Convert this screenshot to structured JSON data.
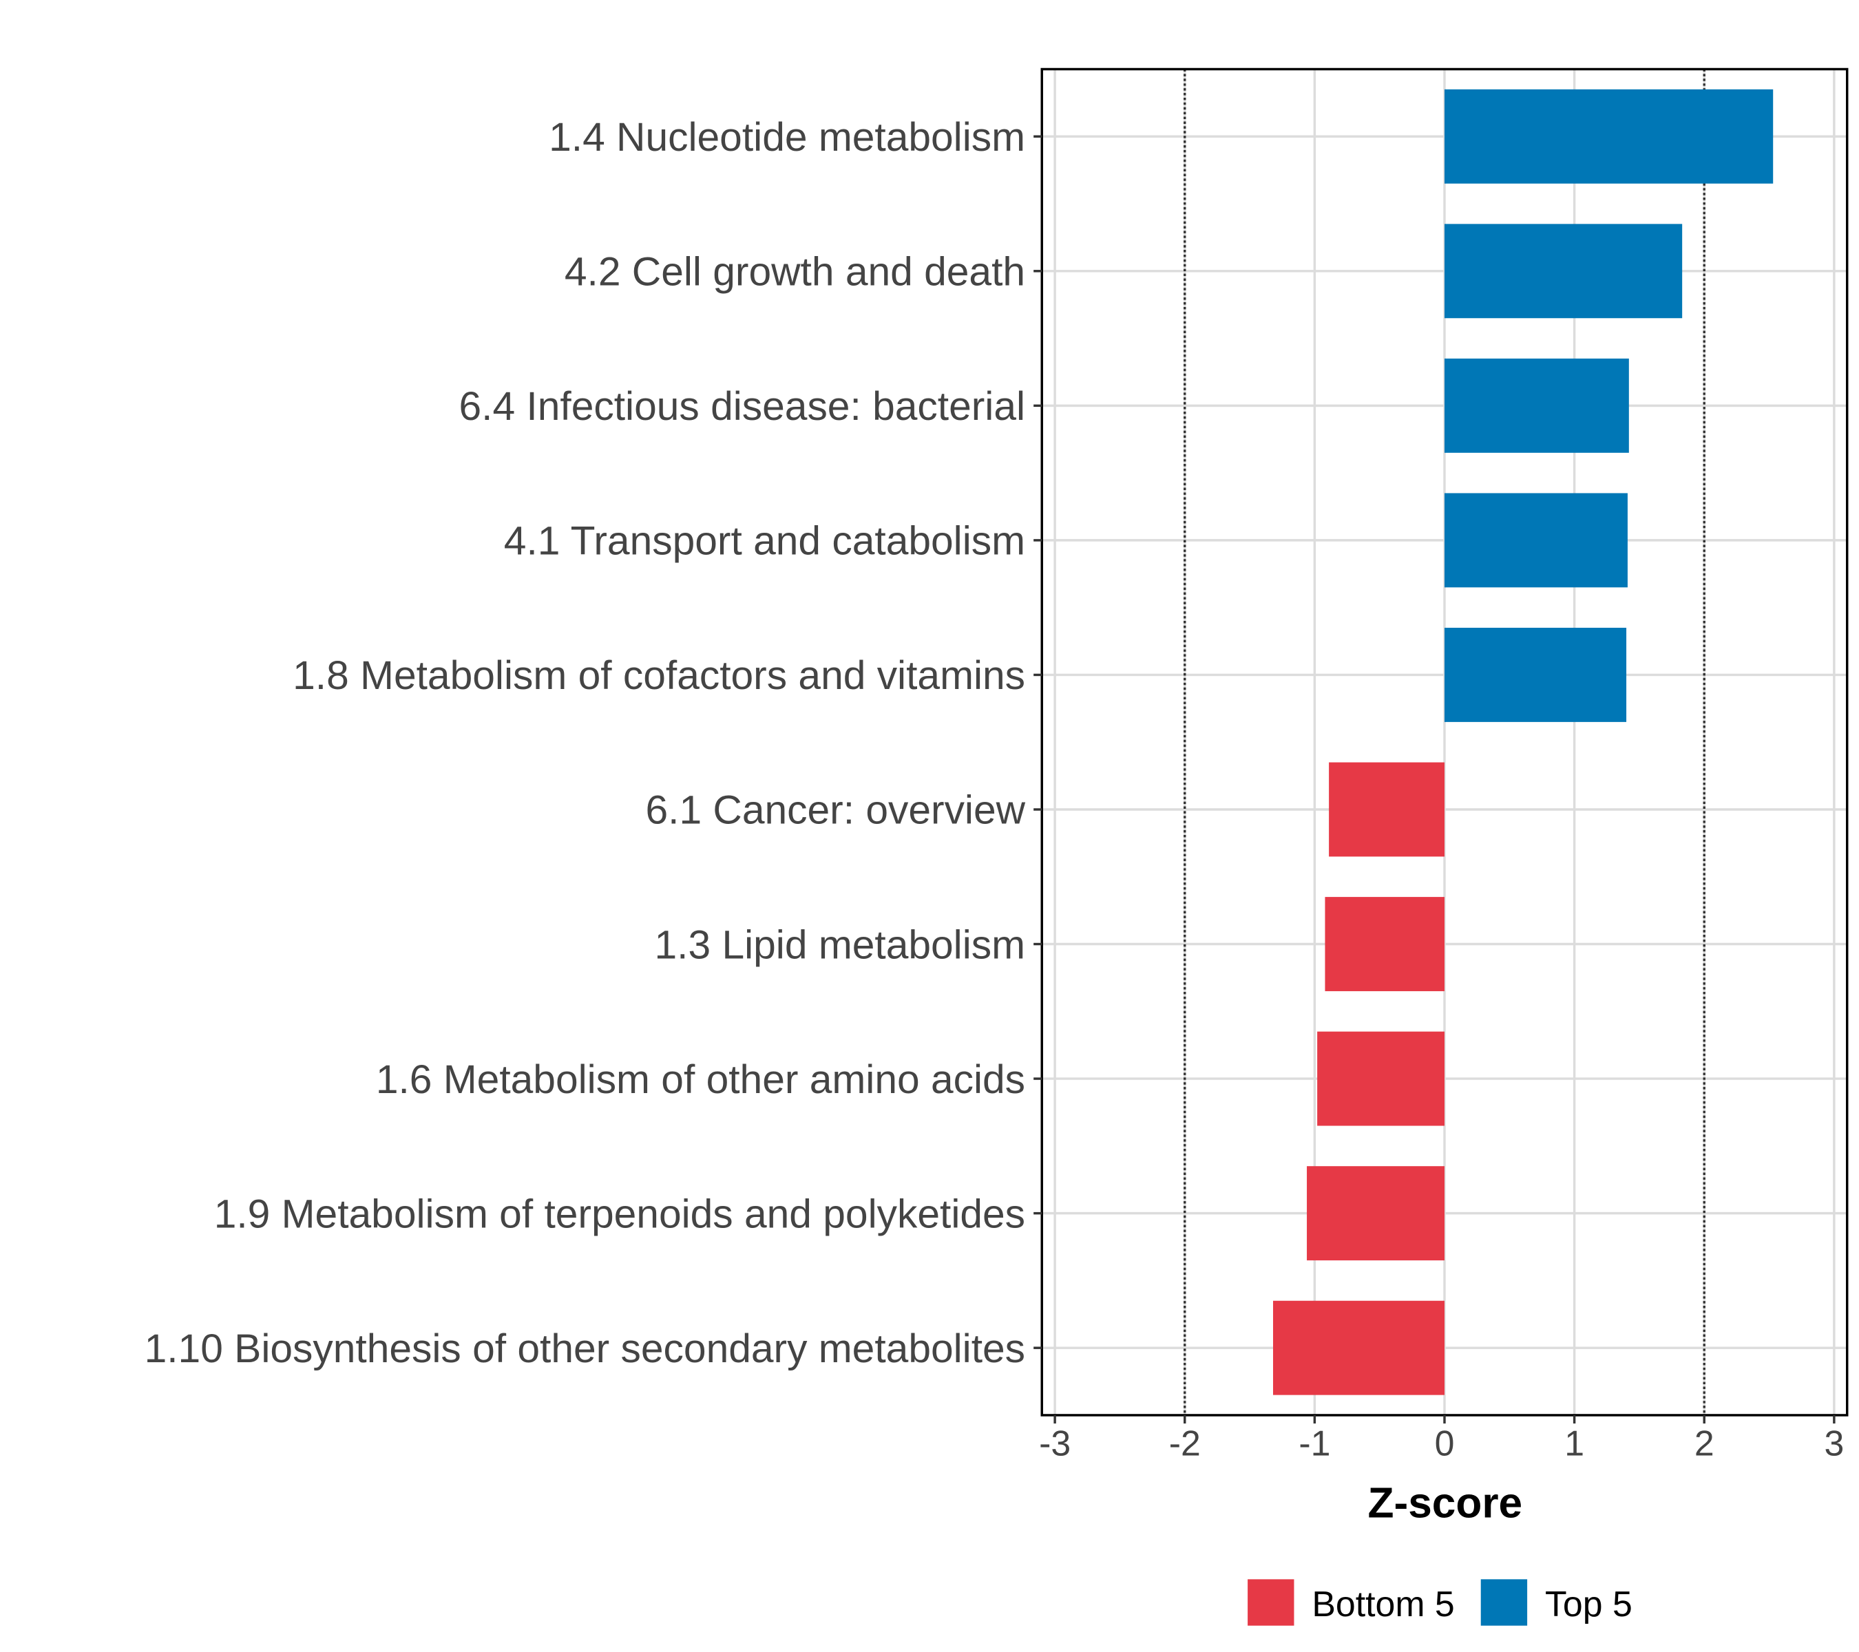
{
  "chart_data": {
    "type": "bar",
    "orientation": "horizontal",
    "title": "",
    "xlabel": "Z-score",
    "ylabel": "",
    "xlim": [
      -3.1,
      3.1
    ],
    "xticks": [
      "-3",
      "-2",
      "-1",
      "0",
      "1",
      "2",
      "3"
    ],
    "reference_lines": [
      -2,
      2
    ],
    "grid": true,
    "categories": [
      "1.4 Nucleotide metabolism",
      "4.2 Cell growth and death",
      "6.4 Infectious disease: bacterial",
      "4.1 Transport and catabolism",
      "1.8 Metabolism of cofactors and vitamins",
      "6.1 Cancer: overview",
      "1.3 Lipid metabolism",
      "1.6 Metabolism of other amino acids",
      "1.9 Metabolism of terpenoids and polyketides",
      "1.10 Biosynthesis of other secondary metabolites"
    ],
    "values": [
      2.53,
      1.83,
      1.42,
      1.41,
      1.4,
      -0.89,
      -0.92,
      -0.98,
      -1.06,
      -1.32
    ],
    "groups": [
      "Top 5",
      "Top 5",
      "Top 5",
      "Top 5",
      "Top 5",
      "Bottom 5",
      "Bottom 5",
      "Bottom 5",
      "Bottom 5",
      "Bottom 5"
    ],
    "legend": {
      "placement": "bottom",
      "entries": [
        {
          "label": "Bottom 5",
          "color": "#e63946"
        },
        {
          "label": "Top 5",
          "color": "#0077b6"
        }
      ]
    }
  }
}
